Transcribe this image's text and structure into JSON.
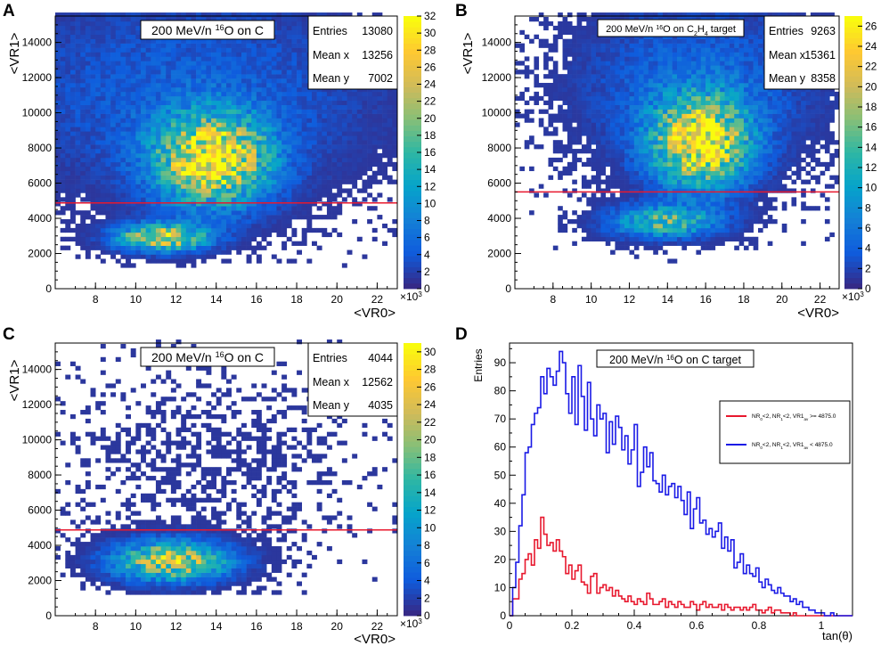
{
  "colors": {
    "palette": [
      "#352a87",
      "#0f5cdd",
      "#1481d6",
      "#06a4ca",
      "#2eb7a4",
      "#87bf77",
      "#d1bb59",
      "#fec832",
      "#f9fb0e"
    ],
    "red_line": "#e8182e",
    "blue_line": "#1a1ae6",
    "frame": "#000000"
  },
  "panels": {
    "A": {
      "letter": "A",
      "title": "200 MeV/n ",
      "title_iso": "16",
      "title_rest": "O on C",
      "stats": [
        {
          "k": "Entries",
          "v": "13080"
        },
        {
          "k": "Mean x",
          "v": "13256"
        },
        {
          "k": "Mean y",
          "v": "7002"
        }
      ],
      "xlabel": "<VR0>",
      "ylabel": "<VR1>",
      "xexp": "×10",
      "xexp_pow": "3"
    },
    "B": {
      "letter": "B",
      "title": "200 MeV/n ",
      "title_iso": "16",
      "title_rest": "O on C",
      "title_sub1": "2",
      "title_mid": "H",
      "title_sub2": "4",
      "title_tail": " target",
      "stats": [
        {
          "k": "Entries",
          "v": "9263"
        },
        {
          "k": "Mean x",
          "v": "15361"
        },
        {
          "k": "Mean y",
          "v": "8358"
        }
      ],
      "xlabel": "<VR0>",
      "ylabel": "<VR1>",
      "xexp": "×10",
      "xexp_pow": "3"
    },
    "C": {
      "letter": "C",
      "title": "200 MeV/n ",
      "title_iso": "16",
      "title_rest": "O on C",
      "stats": [
        {
          "k": "Entries",
          "v": "4044"
        },
        {
          "k": "Mean x",
          "v": "12562"
        },
        {
          "k": "Mean y",
          "v": "4035"
        }
      ],
      "xlabel": "<VR0>",
      "ylabel": "<VR1>",
      "xexp": "×10",
      "xexp_pow": "3"
    },
    "D": {
      "letter": "D",
      "title": "200 MeV/n ",
      "title_iso": "16",
      "title_rest": "O on C target",
      "xlabel": "tan(θ)",
      "ylabel": "Entries",
      "legend": [
        {
          "color": "red",
          "pre": "NR",
          "s1": "0",
          "mid1": "<2, NR",
          "s2": "1",
          "mid2": "<2, VR1",
          "s3": "av",
          "post": " >= 4875.0"
        },
        {
          "color": "blue",
          "pre": "NR",
          "s1": "0",
          "mid1": "<2, NR",
          "s2": "1",
          "mid2": "<2, VR1",
          "s3": "av",
          "post": " < 4875.0"
        }
      ]
    }
  },
  "chart_data": [
    {
      "panel": "A",
      "type": "heatmap",
      "title": "200 MeV/n 16O on C",
      "xlabel": "<VR0>",
      "ylabel": "<VR1>",
      "xlim": [
        6000,
        23000
      ],
      "ylim": [
        0,
        15500
      ],
      "zlim": [
        0,
        32
      ],
      "x_ticks": [
        "8",
        "10",
        "12",
        "14",
        "16",
        "18",
        "20",
        "22"
      ],
      "x_tick_vals": [
        8000,
        10000,
        12000,
        14000,
        16000,
        18000,
        20000,
        22000
      ],
      "y_ticks": [
        "0",
        "2000",
        "4000",
        "6000",
        "8000",
        "10000",
        "12000",
        "14000"
      ],
      "y_tick_vals": [
        0,
        2000,
        4000,
        6000,
        8000,
        10000,
        12000,
        14000
      ],
      "z_ticks": [
        "0",
        "2",
        "4",
        "6",
        "8",
        "10",
        "12",
        "14",
        "16",
        "18",
        "20",
        "22",
        "24",
        "26",
        "28",
        "30",
        "32"
      ],
      "cut_line_y": 4875,
      "clusters": [
        {
          "cx": 13700,
          "cy": 7200,
          "sx": 1900,
          "sy": 1700,
          "amp": 30
        },
        {
          "cx": 11200,
          "cy": 2800,
          "sx": 1500,
          "sy": 500,
          "amp": 26
        },
        {
          "cx": 12500,
          "cy": 11000,
          "sx": 6500,
          "sy": 3800,
          "amp": 4.5
        }
      ],
      "entries": 13080,
      "mean_x": 13256,
      "mean_y": 7002
    },
    {
      "panel": "B",
      "type": "heatmap",
      "title": "200 MeV/n 16O on C2H4 target",
      "xlabel": "<VR0>",
      "ylabel": "<VR1>",
      "xlim": [
        6000,
        23000
      ],
      "ylim": [
        0,
        15500
      ],
      "zlim": [
        0,
        27
      ],
      "x_ticks": [
        "8",
        "10",
        "12",
        "14",
        "16",
        "18",
        "20",
        "22"
      ],
      "x_tick_vals": [
        8000,
        10000,
        12000,
        14000,
        16000,
        18000,
        20000,
        22000
      ],
      "y_ticks": [
        "0",
        "2000",
        "4000",
        "6000",
        "8000",
        "10000",
        "12000",
        "14000"
      ],
      "y_tick_vals": [
        0,
        2000,
        4000,
        6000,
        8000,
        10000,
        12000,
        14000
      ],
      "z_ticks": [
        "0",
        "2",
        "4",
        "6",
        "8",
        "10",
        "12",
        "14",
        "16",
        "18",
        "20",
        "22",
        "24",
        "26"
      ],
      "cut_line_y": 5500,
      "clusters": [
        {
          "cx": 15600,
          "cy": 8200,
          "sx": 1700,
          "sy": 1700,
          "amp": 25
        },
        {
          "cx": 13700,
          "cy": 3700,
          "sx": 1900,
          "sy": 600,
          "amp": 14
        },
        {
          "cx": 15500,
          "cy": 11500,
          "sx": 4200,
          "sy": 3200,
          "amp": 4.5
        }
      ],
      "entries": 9263,
      "mean_x": 15361,
      "mean_y": 8358
    },
    {
      "panel": "C",
      "type": "heatmap",
      "title": "200 MeV/n 16O on C",
      "xlabel": "<VR0>",
      "ylabel": "<VR1>",
      "xlim": [
        6000,
        23000
      ],
      "ylim": [
        0,
        15500
      ],
      "zlim": [
        0,
        31
      ],
      "x_ticks": [
        "8",
        "10",
        "12",
        "14",
        "16",
        "18",
        "20",
        "22"
      ],
      "x_tick_vals": [
        8000,
        10000,
        12000,
        14000,
        16000,
        18000,
        20000,
        22000
      ],
      "y_ticks": [
        "0",
        "2000",
        "4000",
        "6000",
        "8000",
        "10000",
        "12000",
        "14000"
      ],
      "y_tick_vals": [
        0,
        2000,
        4000,
        6000,
        8000,
        10000,
        12000,
        14000
      ],
      "z_ticks": [
        "0",
        "2",
        "4",
        "6",
        "8",
        "10",
        "12",
        "14",
        "16",
        "18",
        "20",
        "22",
        "24",
        "26",
        "28",
        "30"
      ],
      "cut_line_y": 4875,
      "clusters": [
        {
          "cx": 11700,
          "cy": 3000,
          "sx": 1900,
          "sy": 750,
          "amp": 24
        },
        {
          "cx": 13500,
          "cy": 8500,
          "sx": 4500,
          "sy": 3500,
          "amp": 0.7
        }
      ],
      "entries": 4044,
      "mean_x": 12562,
      "mean_y": 4035
    },
    {
      "panel": "D",
      "type": "line",
      "title": "200 MeV/n 16O on C target",
      "xlabel": "tan(θ)",
      "ylabel": "Entries",
      "xlim": [
        0,
        1.1
      ],
      "ylim": [
        0,
        97
      ],
      "x_ticks": [
        "0",
        "0.2",
        "0.4",
        "0.6",
        "0.8",
        "1"
      ],
      "x_tick_vals": [
        0,
        0.2,
        0.4,
        0.6,
        0.8,
        1.0
      ],
      "y_ticks": [
        "0",
        "10",
        "20",
        "30",
        "40",
        "50",
        "60",
        "70",
        "80",
        "90"
      ],
      "y_tick_vals": [
        0,
        10,
        20,
        30,
        40,
        50,
        60,
        70,
        80,
        90
      ],
      "bin_width": 0.01,
      "series": [
        {
          "name": "NR0<2, NR1<2, VR1av >= 4875.0",
          "color": "red",
          "values": [
            0,
            6,
            6,
            13,
            15,
            20,
            22,
            18,
            27,
            24,
            35,
            29,
            25,
            26,
            23,
            27,
            23,
            21,
            15,
            18,
            13,
            16,
            18,
            12,
            11,
            8,
            14,
            15,
            8,
            10,
            11,
            9,
            10,
            7,
            9,
            7,
            6,
            5,
            7,
            5,
            4,
            6,
            5,
            4,
            8,
            6,
            4,
            4,
            5,
            6,
            3,
            5,
            4,
            3,
            5,
            4,
            3,
            3,
            5,
            4,
            2,
            4,
            5,
            3,
            4,
            3,
            3,
            4,
            2,
            4,
            3,
            2,
            3,
            3,
            2,
            3,
            2,
            3,
            4,
            2,
            2,
            1,
            2,
            3,
            1,
            2,
            2,
            1,
            1,
            1,
            0,
            1,
            0,
            0,
            0,
            0,
            0,
            0,
            0,
            0,
            0,
            0,
            0,
            0,
            0,
            0,
            0,
            0,
            0,
            0
          ]
        },
        {
          "name": "NR0<2, NR1<2, VR1av < 4875.0",
          "color": "blue",
          "values": [
            0,
            10,
            19,
            32,
            43,
            58,
            60,
            68,
            72,
            74,
            85,
            79,
            88,
            85,
            82,
            87,
            94,
            90,
            79,
            72,
            85,
            68,
            89,
            78,
            66,
            83,
            70,
            64,
            75,
            70,
            72,
            58,
            69,
            61,
            71,
            67,
            59,
            64,
            54,
            59,
            68,
            46,
            51,
            60,
            53,
            58,
            48,
            47,
            44,
            50,
            43,
            46,
            47,
            42,
            46,
            41,
            36,
            44,
            31,
            38,
            42,
            33,
            34,
            29,
            31,
            28,
            30,
            33,
            24,
            28,
            23,
            27,
            17,
            19,
            22,
            15,
            18,
            15,
            14,
            17,
            12,
            10,
            13,
            11,
            9,
            8,
            10,
            8,
            7,
            7,
            5,
            6,
            4,
            5,
            3,
            3,
            2,
            2,
            1,
            1,
            1,
            0,
            0,
            1,
            0,
            0,
            0,
            0,
            0,
            0
          ]
        }
      ]
    }
  ]
}
